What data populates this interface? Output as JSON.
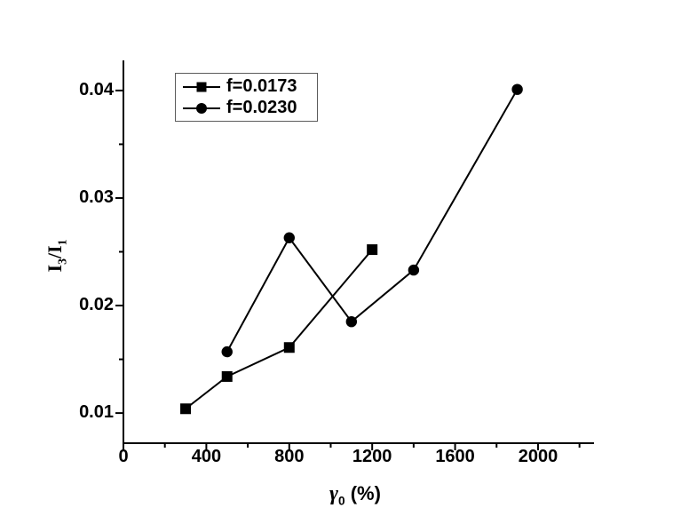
{
  "chart_data": {
    "type": "line",
    "title": "",
    "xlabel": "γ0 (%)",
    "xlabel_parts": {
      "base": "γ",
      "sub": "0",
      "rest": " (%)"
    },
    "ylabel": "I3/I1",
    "ylabel_parts": {
      "p1": "I",
      "s1": "3",
      "p2": "/I",
      "s2": "1"
    },
    "xlim": [
      0,
      2270
    ],
    "ylim": [
      0.0072,
      0.0428
    ],
    "x_ticks": {
      "major": [
        0,
        400,
        800,
        1200,
        1600,
        2000
      ],
      "labels": [
        "0",
        "400",
        "800",
        "1200",
        "1600",
        "2000"
      ],
      "minor": [
        200,
        600,
        1000,
        1400,
        1800,
        2200
      ]
    },
    "y_ticks": {
      "major": [
        0.01,
        0.02,
        0.03,
        0.04
      ],
      "labels": [
        "0.01",
        "0.02",
        "0.03",
        "0.04"
      ],
      "minor": [
        0.015,
        0.025,
        0.035
      ]
    },
    "grid": false,
    "legend_position": "upper-left",
    "axis_color": "#000000",
    "background": "#ffffff",
    "series": [
      {
        "name": "f=0.0173",
        "marker": "square",
        "color": "#000000",
        "x": [
          300,
          500,
          800,
          1200
        ],
        "y": [
          0.0104,
          0.0134,
          0.0161,
          0.0252
        ]
      },
      {
        "name": "f=0.0230",
        "marker": "circle",
        "color": "#000000",
        "x": [
          500,
          800,
          1100,
          1400,
          1900
        ],
        "y": [
          0.0157,
          0.0263,
          0.0185,
          0.0233,
          0.0401
        ]
      }
    ]
  }
}
